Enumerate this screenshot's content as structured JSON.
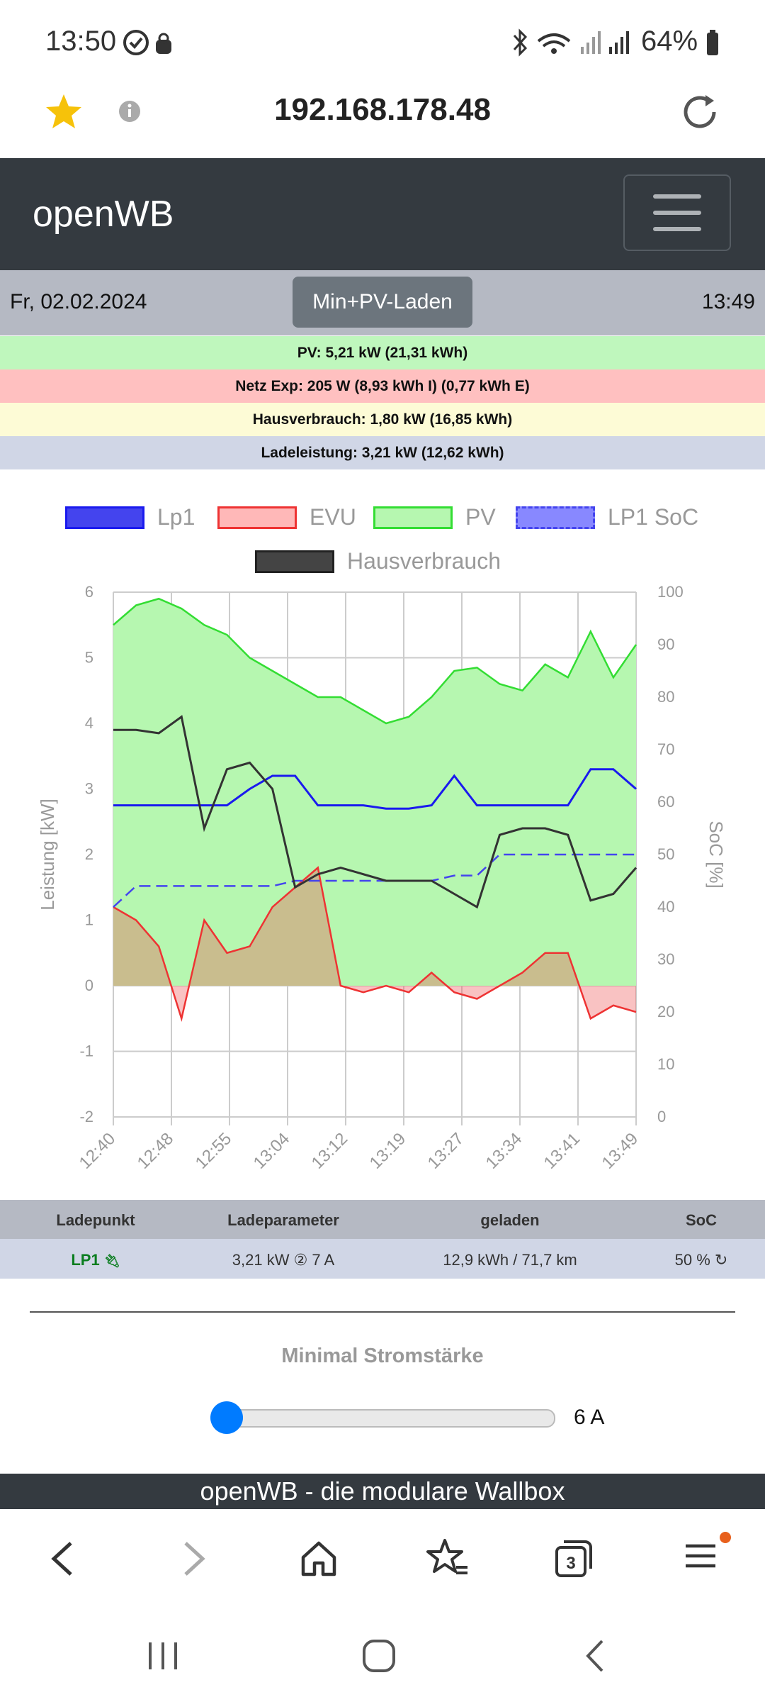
{
  "status": {
    "time": "13:50",
    "battery": "64%"
  },
  "browser": {
    "url": "192.168.178.48"
  },
  "navbar": {
    "brand": "openWB"
  },
  "info": {
    "date": "Fr, 02.02.2024",
    "mode": "Min+PV-Laden",
    "time": "13:49"
  },
  "stats": {
    "pv": "PV: 5,21 kW (21,31 kWh)",
    "netz": "Netz Exp: 205 W (8,93 kWh I) (0,77 kWh E)",
    "haus": "Hausverbrauch: 1,80 kW (16,85 kWh)",
    "lade": "Ladeleistung: 3,21 kW (12,62 kWh)"
  },
  "legend": {
    "lp1": "Lp1",
    "evu": "EVU",
    "pv": "PV",
    "soc": "LP1 SoC",
    "haus": "Hausverbrauch"
  },
  "colors": {
    "lp1": "#1a1aee",
    "evu": "#ee3333",
    "pv": "#33dd33",
    "pv_fill": "#b6f7b0",
    "haus": "#333333",
    "accent": "#007bff"
  },
  "chart_data": {
    "type": "line",
    "ylabel": "Leistung [kW]",
    "y2label": "SoC [%]",
    "ylim": [
      -2,
      6
    ],
    "y2lim": [
      0,
      100
    ],
    "yticks": [
      "6",
      "5",
      "4",
      "3",
      "2",
      "1",
      "0",
      "-1",
      "-2"
    ],
    "y2ticks": [
      "100",
      "90",
      "80",
      "70",
      "60",
      "50",
      "40",
      "30",
      "20",
      "10",
      "0"
    ],
    "xticks": [
      "12:40",
      "12:48",
      "12:55",
      "13:04",
      "13:12",
      "13:19",
      "13:27",
      "13:34",
      "13:41",
      "13:49"
    ],
    "grid": true,
    "legend_position": "top",
    "x_minutes": [
      0,
      3,
      6,
      9,
      12,
      15,
      18,
      21,
      24,
      27,
      30,
      33,
      36,
      39,
      42,
      45,
      48,
      51,
      54,
      57,
      60,
      63,
      66,
      69
    ],
    "series": [
      {
        "name": "PV",
        "values": [
          5.5,
          5.8,
          5.9,
          5.75,
          5.5,
          5.35,
          5.0,
          4.8,
          4.6,
          4.4,
          4.4,
          4.2,
          4.0,
          4.1,
          4.4,
          4.8,
          4.85,
          4.6,
          4.5,
          4.9,
          4.7,
          5.4,
          4.7,
          5.2
        ]
      },
      {
        "name": "EVU",
        "values": [
          1.2,
          1.0,
          0.6,
          -0.5,
          1.0,
          0.5,
          0.6,
          1.2,
          1.5,
          1.8,
          0.0,
          -0.1,
          0.0,
          -0.1,
          0.2,
          -0.1,
          -0.2,
          0.0,
          0.2,
          0.5,
          0.5,
          -0.5,
          -0.3,
          -0.4
        ]
      },
      {
        "name": "Lp1",
        "values": [
          2.75,
          2.75,
          2.75,
          2.75,
          2.75,
          2.75,
          3.0,
          3.2,
          3.2,
          2.75,
          2.75,
          2.75,
          2.7,
          2.7,
          2.75,
          3.2,
          2.75,
          2.75,
          2.75,
          2.75,
          2.75,
          3.3,
          3.3,
          3.0
        ]
      },
      {
        "name": "Hausverbrauch",
        "values": [
          3.9,
          3.9,
          3.85,
          4.1,
          2.4,
          3.3,
          3.4,
          3.0,
          1.5,
          1.7,
          1.8,
          1.7,
          1.6,
          1.6,
          1.6,
          1.4,
          1.2,
          2.3,
          2.4,
          2.4,
          2.3,
          1.3,
          1.4,
          1.8
        ]
      },
      {
        "name": "LP1 SoC",
        "axis": "right",
        "values": [
          40,
          44,
          44,
          44,
          44,
          44,
          44,
          44,
          45,
          45,
          45,
          45,
          45,
          45,
          45,
          46,
          46,
          50,
          50,
          50,
          50,
          50,
          50,
          50
        ]
      }
    ]
  },
  "table": {
    "headers": [
      "Ladepunkt",
      "Ladeparameter",
      "geladen",
      "SoC"
    ],
    "row": {
      "lp": "LP1",
      "param": "3,21 kW ② 7 A",
      "charged": "12,9 kWh / 71,7 km",
      "soc": "50 %"
    }
  },
  "slider": {
    "title": "Minimal Stromstärke",
    "value": "6 A",
    "level": 0
  },
  "footer": {
    "text": "openWB - die modulare Wallbox"
  }
}
